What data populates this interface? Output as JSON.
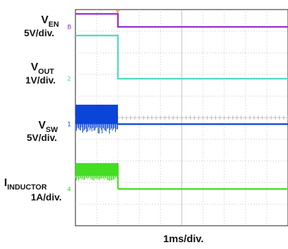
{
  "chart_data": {
    "type": "line",
    "title": "",
    "xlabel": "1ms/div.",
    "trigger_marker": "T",
    "channels": [
      {
        "name_main": "V",
        "name_sub": "EN",
        "scale": "5V/div.",
        "marker": "B",
        "color": "#9a2fd0",
        "x": [
          0,
          2.0,
          2.0,
          10
        ],
        "y": [
          9.8,
          9.8,
          9.2,
          9.2
        ]
      },
      {
        "name_main": "V",
        "name_sub": "OUT",
        "scale": "1V/div.",
        "marker": "2",
        "color": "#4fdcc0",
        "x": [
          0,
          2.0,
          2.0,
          10
        ],
        "y": [
          8.8,
          8.8,
          6.8,
          6.8
        ]
      },
      {
        "name_main": "V",
        "name_sub": "SW",
        "scale": "5V/div.",
        "marker": "1",
        "color": "#0b45d8",
        "switching_until": 2.0,
        "level": 4.7,
        "switching_top": 5.6
      },
      {
        "name_main": "I",
        "name_sub": "INDUCTOR",
        "scale": "1A/div.",
        "marker": "4",
        "color": "#44dd22",
        "switching_until": 2.0,
        "level": 1.7,
        "switching_top": 2.9,
        "switching_bottom": 2.3
      }
    ],
    "xlim": [
      0,
      10
    ],
    "ylim": [
      0,
      10
    ],
    "grid": true
  }
}
